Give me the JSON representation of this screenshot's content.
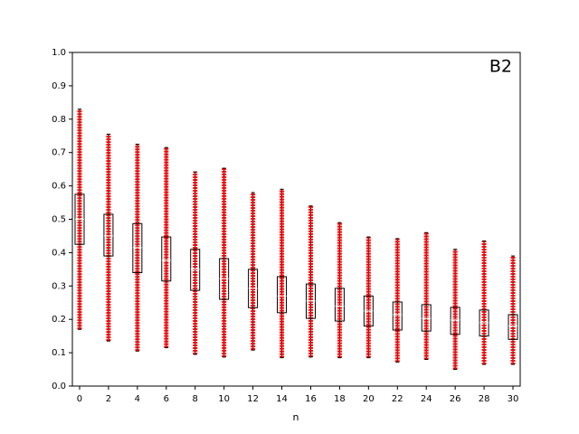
{
  "chart_data": {
    "type": "box",
    "annotation": "B2",
    "x_label": "n",
    "x": [
      0,
      2,
      4,
      6,
      8,
      10,
      12,
      14,
      16,
      18,
      20,
      22,
      24,
      26,
      28,
      30
    ],
    "whishi": [
      0.83,
      0.755,
      0.725,
      0.715,
      0.642,
      0.653,
      0.58,
      0.59,
      0.54,
      0.49,
      0.447,
      0.442,
      0.46,
      0.41,
      0.435,
      0.39
    ],
    "q3": [
      0.575,
      0.515,
      0.487,
      0.447,
      0.41,
      0.382,
      0.35,
      0.328,
      0.306,
      0.293,
      0.27,
      0.252,
      0.244,
      0.236,
      0.228,
      0.214
    ],
    "med": [
      0.5,
      0.45,
      0.415,
      0.377,
      0.35,
      0.322,
      0.293,
      0.27,
      0.255,
      0.24,
      0.225,
      0.214,
      0.203,
      0.198,
      0.19,
      0.18
    ],
    "q1": [
      0.425,
      0.39,
      0.34,
      0.315,
      0.287,
      0.26,
      0.235,
      0.22,
      0.203,
      0.195,
      0.18,
      0.168,
      0.165,
      0.155,
      0.15,
      0.14
    ],
    "whislo": [
      0.17,
      0.135,
      0.105,
      0.115,
      0.095,
      0.087,
      0.108,
      0.085,
      0.087,
      0.085,
      0.085,
      0.072,
      0.08,
      0.05,
      0.065,
      0.065
    ],
    "point_color": "#ff0000",
    "box_color": "#000000",
    "median_color": "#ffffff",
    "xlim": [
      -0.5,
      30.5
    ],
    "ylim": [
      0,
      1
    ],
    "xticks": [
      0,
      2,
      4,
      6,
      8,
      10,
      12,
      14,
      16,
      18,
      20,
      22,
      24,
      26,
      28,
      30
    ],
    "yticks": [
      {
        "value": 0,
        "label": "0.0"
      },
      0.1,
      0.2,
      0.3,
      0.4,
      0.5,
      0.6,
      0.7,
      0.8,
      0.9,
      {
        "value": 1,
        "label": "1.0"
      }
    ]
  }
}
